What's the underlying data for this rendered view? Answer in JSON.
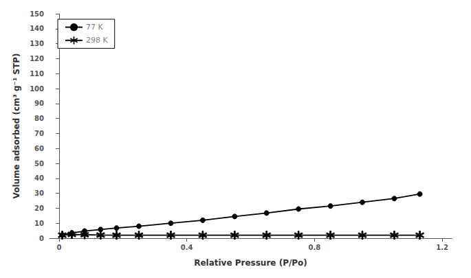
{
  "chart_data": {
    "type": "line",
    "xlabel": "Relative Pressure (P/Po)",
    "ylabel": "Volume adsorbed (cm³ g⁻¹ STP)",
    "x": [
      0.01,
      0.04,
      0.08,
      0.13,
      0.18,
      0.25,
      0.35,
      0.45,
      0.55,
      0.65,
      0.75,
      0.85,
      0.95,
      1.05,
      1.13
    ],
    "series": [
      {
        "name": "77 K",
        "color": "#000000",
        "marker": "circle",
        "values": [
          2.2,
          3.5,
          4.8,
          5.8,
          6.8,
          8.0,
          10.0,
          12.0,
          14.5,
          16.8,
          19.5,
          21.5,
          24.0,
          26.5,
          29.5
        ]
      },
      {
        "name": "298 K",
        "color": "#000000",
        "marker": "asterisk",
        "values": [
          2.0,
          2.5,
          2.3,
          2.1,
          2.0,
          2.0,
          2.0,
          2.0,
          2.0,
          2.0,
          2.0,
          2.0,
          2.0,
          2.0,
          2.0
        ]
      }
    ],
    "xlim": [
      -0.03,
      1.23
    ],
    "xticks": [
      0,
      0.4,
      0.8,
      1.2
    ],
    "ylim": [
      0,
      150
    ],
    "yticks": [
      0,
      10,
      20,
      30,
      40,
      50,
      60,
      70,
      80,
      90,
      100,
      110,
      120,
      130,
      140,
      150
    ],
    "grid": false,
    "legend": "upper left"
  }
}
